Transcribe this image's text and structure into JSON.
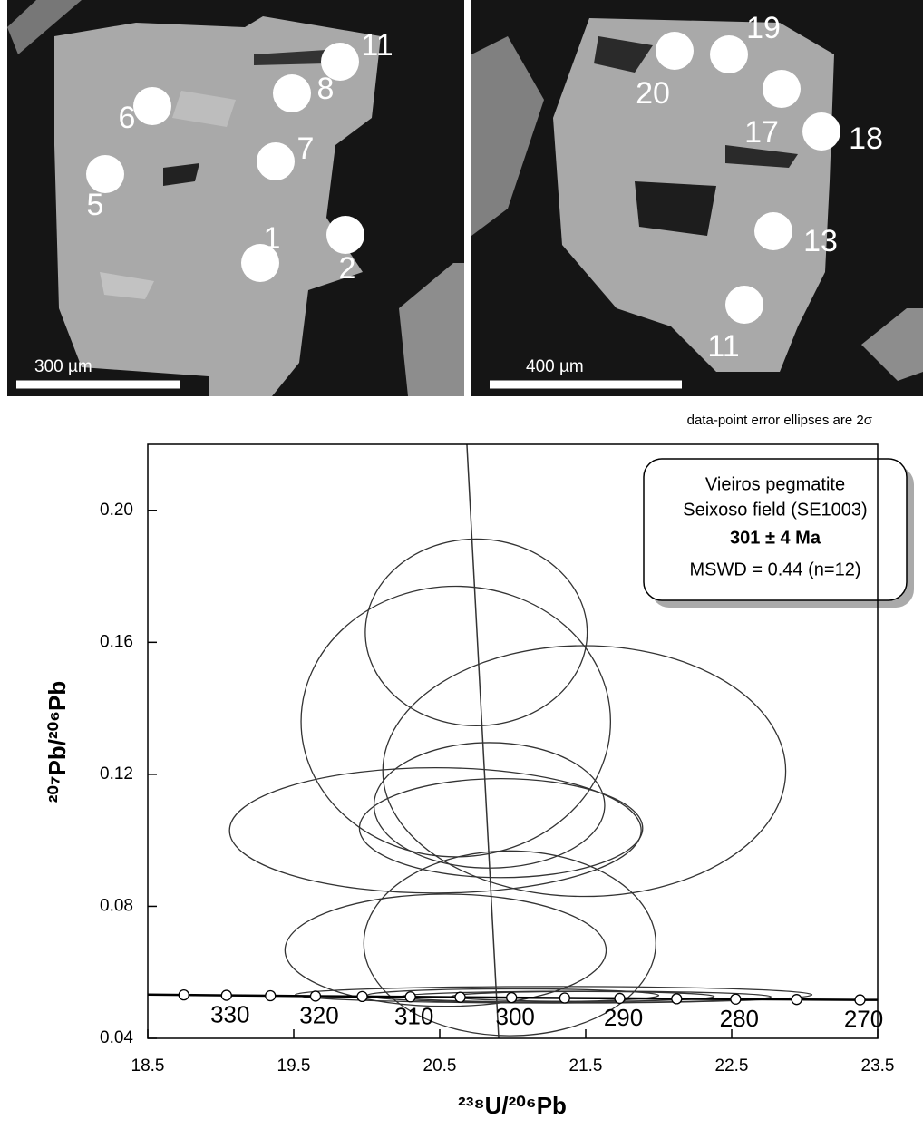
{
  "images": [
    {
      "scale_bar": "300 µm",
      "spots": [
        "11",
        "8",
        "6",
        "7",
        "5",
        "2",
        "1"
      ]
    },
    {
      "scale_bar": "400 µm",
      "spots": [
        "20",
        "19",
        "17",
        "18",
        "13",
        "11"
      ]
    }
  ],
  "chart_data": {
    "type": "concordia",
    "note": "data-point error ellipses are 2σ",
    "x_label": "²³⁸U/²⁰⁶Pb",
    "y_label": "²⁰⁷Pb/²⁰⁶Pb",
    "xlim": [
      18.5,
      23.5
    ],
    "ylim": [
      0.04,
      0.22
    ],
    "xticks": [
      18.5,
      19.5,
      20.5,
      21.5,
      22.5,
      23.5
    ],
    "yticks": [
      0.04,
      0.08,
      0.12,
      0.16,
      {
        "value": 0.2,
        "label": "0.20"
      }
    ],
    "legend_box": {
      "lines": [
        "Vieiros pegmatite",
        "Seixoso field (SE1003)",
        "301 ± 4 Ma",
        "MSWD = 0.44 (n=12)"
      ]
    },
    "ellipses": {
      "x": [
        20.75,
        20.61,
        21.49,
        20.84,
        20.47,
        20.92,
        20.54,
        20.98,
        21.28,
        21.5,
        21.48,
        21.0
      ],
      "y": [
        0.163,
        0.136,
        0.121,
        0.1106,
        0.103,
        0.1037,
        0.0667,
        0.0688,
        0.0532,
        0.0526,
        0.0527,
        0.053
      ],
      "x_err": [
        0.76,
        1.06,
        1.38,
        0.79,
        1.41,
        0.97,
        1.1,
        1.0,
        1.77,
        1.27,
        0.9,
        1.0
      ],
      "y_err": [
        0.0283,
        0.041,
        0.038,
        0.019,
        0.019,
        0.015,
        0.017,
        0.028,
        0.0025,
        0.0017,
        0.0015,
        0.002
      ],
      "color": "#333333"
    },
    "concordia": {
      "x": [
        18.747,
        19.039,
        19.34,
        19.649,
        19.969,
        20.299,
        20.64,
        20.992,
        21.356,
        21.733,
        22.123,
        22.527,
        22.945,
        23.379
      ],
      "y": [
        0.05315,
        0.05303,
        0.05291,
        0.05279,
        0.05268,
        0.05257,
        0.05245,
        0.05233,
        0.05222,
        0.05211,
        0.05199,
        0.05188,
        0.05177,
        0.05166
      ],
      "ages": [
        null,
        330,
        null,
        320,
        null,
        310,
        null,
        300,
        null,
        290,
        null,
        280,
        null,
        270
      ]
    },
    "regression": {
      "x": [
        20.686,
        20.904
      ],
      "y": [
        0.22,
        0.04
      ]
    }
  }
}
